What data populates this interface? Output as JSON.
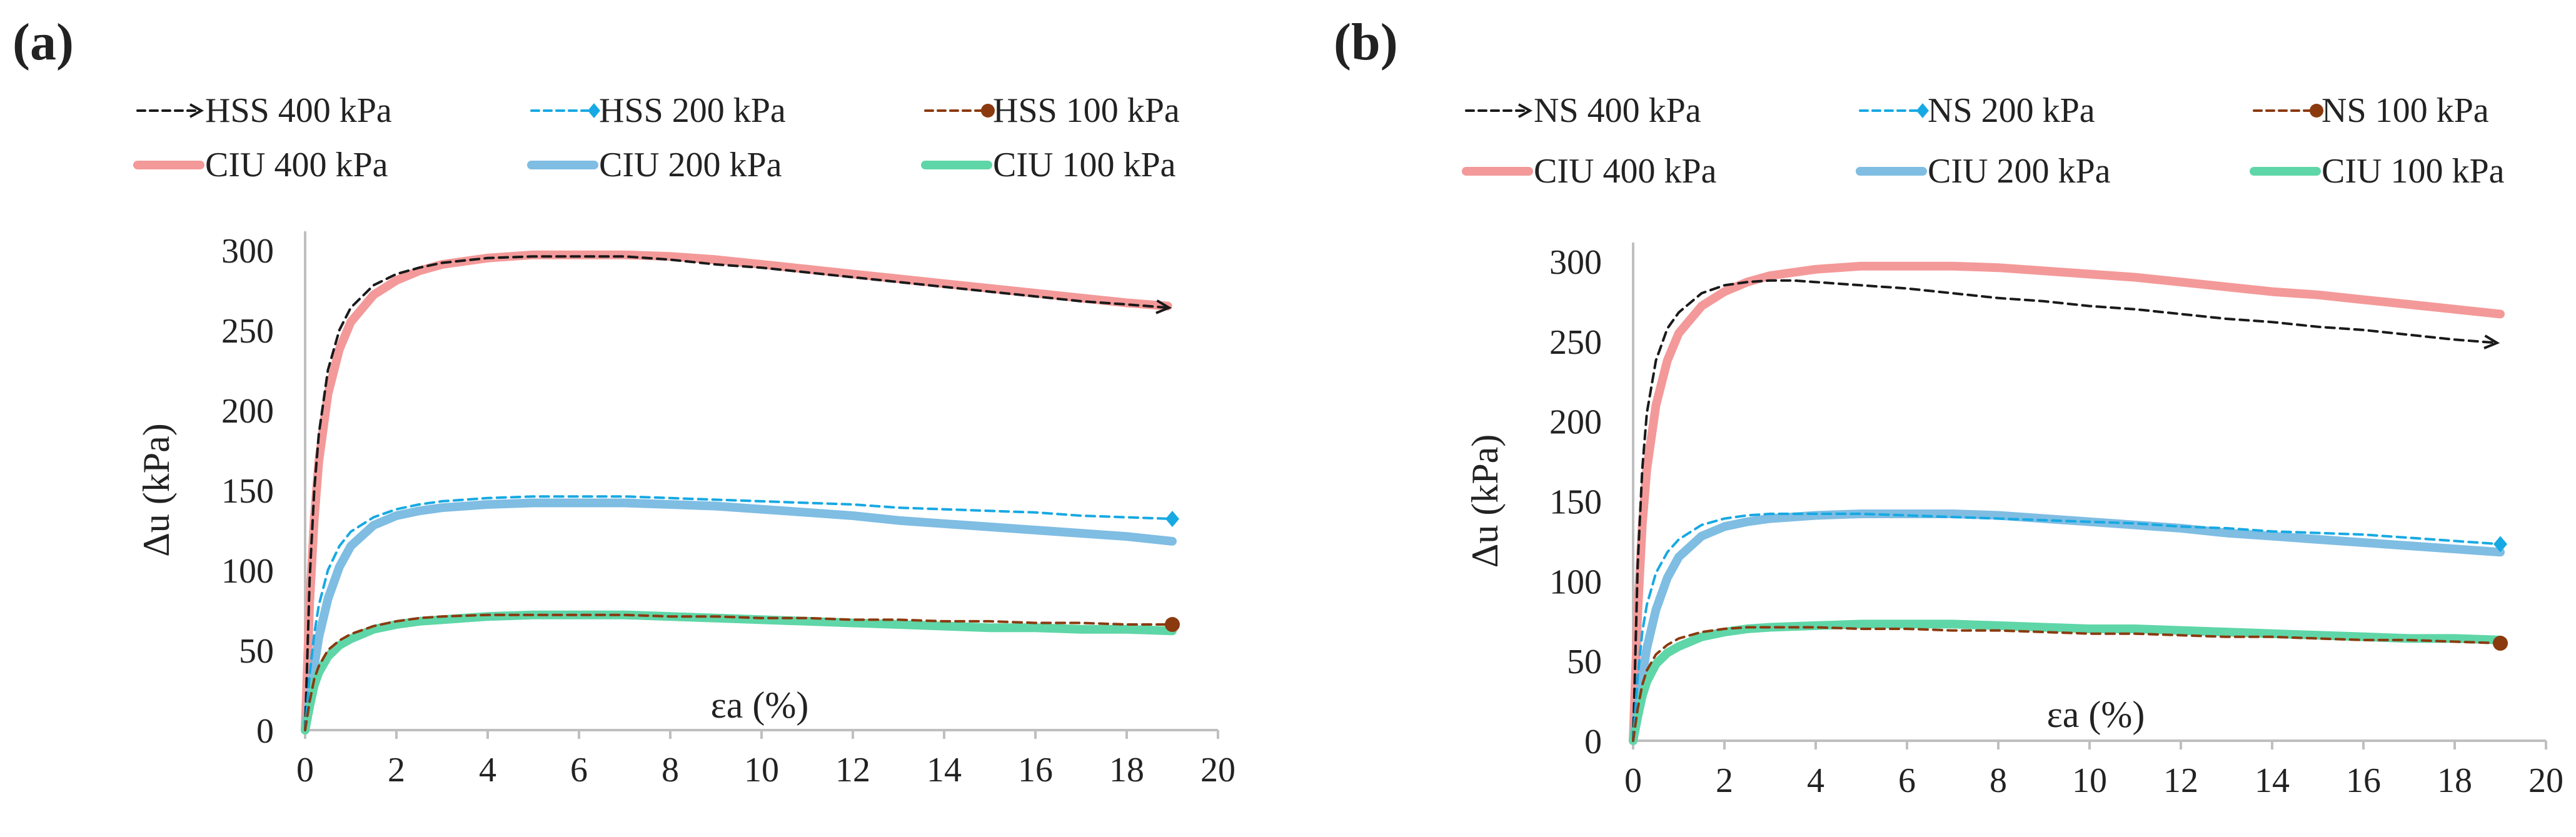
{
  "chart_data": [
    {
      "type": "line",
      "panel_label": "(a)",
      "title": "",
      "xlabel": "εa (%)",
      "ylabel": "Δu (kPa)",
      "xlim": [
        0,
        20
      ],
      "ylim": [
        0,
        300
      ],
      "xticks": [
        0,
        2,
        4,
        6,
        8,
        10,
        12,
        14,
        16,
        18,
        20
      ],
      "yticks": [
        0,
        50,
        100,
        150,
        200,
        250,
        300
      ],
      "grid": false,
      "legend_position": "top",
      "series": [
        {
          "name": "HSS 400 kPa",
          "color": "#1a1a1a",
          "style": "dashed",
          "marker": "arrow",
          "x": [
            0,
            0.1,
            0.2,
            0.3,
            0.5,
            0.75,
            1,
            1.5,
            2,
            2.5,
            3,
            4,
            5,
            6,
            7,
            8,
            9,
            10,
            11,
            12,
            13,
            14,
            15,
            16,
            17,
            18,
            18.9
          ],
          "y": [
            0,
            95,
            150,
            185,
            225,
            250,
            264,
            278,
            285,
            289,
            292,
            295,
            296,
            296,
            296,
            294,
            291,
            289,
            286,
            283,
            280,
            277,
            274,
            271,
            268,
            266,
            264
          ]
        },
        {
          "name": "HSS 200 kPa",
          "color": "#17a9e3",
          "style": "dashed",
          "marker": "diamond",
          "x": [
            0,
            0.1,
            0.2,
            0.3,
            0.5,
            0.75,
            1,
            1.5,
            2,
            2.5,
            3,
            4,
            5,
            6,
            7,
            8,
            9,
            10,
            11,
            12,
            13,
            14,
            15,
            16,
            17,
            18,
            19
          ],
          "y": [
            0,
            35,
            60,
            78,
            100,
            115,
            124,
            133,
            138,
            141,
            143,
            145,
            146,
            146,
            146,
            145,
            144,
            143,
            142,
            141,
            139,
            138,
            137,
            136,
            134,
            133,
            132
          ]
        },
        {
          "name": "HSS 100 kPa",
          "color": "#8b3a0f",
          "style": "dashed",
          "marker": "circle",
          "x": [
            0,
            0.1,
            0.2,
            0.3,
            0.5,
            0.75,
            1,
            1.5,
            2,
            2.5,
            3,
            4,
            5,
            6,
            7,
            8,
            9,
            10,
            11,
            12,
            13,
            14,
            15,
            16,
            17,
            18,
            19
          ],
          "y": [
            0,
            18,
            32,
            40,
            50,
            56,
            60,
            65,
            68,
            70,
            71,
            72,
            72,
            72,
            72,
            71,
            71,
            70,
            70,
            69,
            69,
            68,
            68,
            67,
            67,
            66,
            66
          ]
        },
        {
          "name": "CIU 400 kPa",
          "color": "#f49999",
          "style": "solid",
          "marker": "none",
          "x": [
            0,
            0.1,
            0.2,
            0.3,
            0.5,
            0.75,
            1,
            1.5,
            2,
            2.5,
            3,
            4,
            5,
            6,
            7,
            8,
            9,
            10,
            11,
            12,
            13,
            14,
            15,
            16,
            17,
            18,
            18.9
          ],
          "y": [
            0,
            80,
            132,
            168,
            210,
            238,
            255,
            272,
            281,
            287,
            291,
            295,
            297,
            297,
            297,
            296,
            294,
            291,
            288,
            285,
            282,
            279,
            276,
            273,
            270,
            267,
            265
          ]
        },
        {
          "name": "CIU 200 kPa",
          "color": "#7fbde3",
          "style": "solid",
          "marker": "none",
          "x": [
            0,
            0.1,
            0.2,
            0.3,
            0.5,
            0.75,
            1,
            1.5,
            2,
            2.5,
            3,
            4,
            5,
            6,
            7,
            8,
            9,
            10,
            11,
            12,
            13,
            14,
            15,
            16,
            17,
            18,
            19
          ],
          "y": [
            0,
            20,
            40,
            58,
            82,
            102,
            115,
            128,
            134,
            137,
            139,
            141,
            142,
            142,
            142,
            141,
            140,
            138,
            136,
            134,
            131,
            129,
            127,
            125,
            123,
            121,
            118
          ]
        },
        {
          "name": "CIU 100 kPa",
          "color": "#5fd6a8",
          "style": "solid",
          "marker": "none",
          "x": [
            0,
            0.1,
            0.2,
            0.3,
            0.5,
            0.75,
            1,
            1.5,
            2,
            2.5,
            3,
            4,
            5,
            6,
            7,
            8,
            9,
            10,
            11,
            12,
            13,
            14,
            15,
            16,
            17,
            18,
            19
          ],
          "y": [
            0,
            15,
            28,
            36,
            46,
            53,
            57,
            63,
            66,
            68,
            69,
            71,
            72,
            72,
            72,
            71,
            70,
            69,
            68,
            67,
            66,
            65,
            64,
            64,
            63,
            63,
            62
          ]
        }
      ]
    },
    {
      "type": "line",
      "panel_label": "(b)",
      "title": "",
      "xlabel": "εa (%)",
      "ylabel": "Δu (kPa)",
      "xlim": [
        0,
        20
      ],
      "ylim": [
        0,
        300
      ],
      "xticks": [
        0,
        2,
        4,
        6,
        8,
        10,
        12,
        14,
        16,
        18,
        20
      ],
      "yticks": [
        0,
        50,
        100,
        150,
        200,
        250,
        300
      ],
      "grid": false,
      "legend_position": "top",
      "series": [
        {
          "name": "NS 400 kPa",
          "color": "#1a1a1a",
          "style": "dashed",
          "marker": "arrow",
          "x": [
            0,
            0.1,
            0.2,
            0.3,
            0.5,
            0.75,
            1,
            1.5,
            2,
            2.5,
            3,
            3.5,
            4,
            5,
            6,
            7,
            8,
            9,
            10,
            11,
            12,
            13,
            14,
            15,
            16,
            17,
            18,
            18.9
          ],
          "y": [
            0,
            110,
            170,
            205,
            238,
            258,
            268,
            280,
            285,
            287,
            288,
            288,
            287,
            285,
            283,
            280,
            277,
            275,
            272,
            270,
            267,
            264,
            262,
            259,
            257,
            254,
            251,
            249
          ]
        },
        {
          "name": "NS 200 kPa",
          "color": "#17a9e3",
          "style": "dashed",
          "marker": "diamond",
          "x": [
            0,
            0.1,
            0.2,
            0.3,
            0.5,
            0.75,
            1,
            1.5,
            2,
            2.5,
            3,
            4,
            5,
            6,
            7,
            8,
            9,
            10,
            11,
            12,
            13,
            14,
            15,
            16,
            17,
            18,
            19
          ],
          "y": [
            0,
            40,
            68,
            85,
            105,
            118,
            126,
            135,
            139,
            141,
            142,
            142,
            142,
            141,
            140,
            139,
            138,
            137,
            136,
            134,
            133,
            131,
            130,
            129,
            127,
            125,
            123
          ]
        },
        {
          "name": "NS 100 kPa",
          "color": "#8b3a0f",
          "style": "dashed",
          "marker": "circle",
          "x": [
            0,
            0.1,
            0.2,
            0.3,
            0.5,
            0.75,
            1,
            1.5,
            2,
            2.5,
            3,
            4,
            5,
            6,
            7,
            8,
            9,
            10,
            11,
            12,
            13,
            14,
            15,
            16,
            17,
            18,
            19
          ],
          "y": [
            0,
            20,
            35,
            44,
            54,
            60,
            64,
            68,
            70,
            71,
            71,
            71,
            70,
            70,
            69,
            69,
            68,
            67,
            67,
            66,
            65,
            65,
            64,
            63,
            63,
            62,
            61
          ]
        },
        {
          "name": "CIU 400 kPa",
          "color": "#f49999",
          "style": "solid",
          "marker": "none",
          "x": [
            0,
            0.1,
            0.2,
            0.3,
            0.5,
            0.75,
            1,
            1.5,
            2,
            2.5,
            3,
            4,
            5,
            6,
            7,
            8,
            9,
            10,
            11,
            12,
            13,
            14,
            15,
            16,
            17,
            18,
            19
          ],
          "y": [
            0,
            80,
            135,
            170,
            210,
            238,
            255,
            272,
            281,
            287,
            291,
            295,
            297,
            297,
            297,
            296,
            294,
            292,
            290,
            287,
            284,
            281,
            279,
            276,
            273,
            270,
            267
          ]
        },
        {
          "name": "CIU 200 kPa",
          "color": "#7fbde3",
          "style": "solid",
          "marker": "none",
          "x": [
            0,
            0.1,
            0.2,
            0.3,
            0.5,
            0.75,
            1,
            1.5,
            2,
            2.5,
            3,
            4,
            5,
            6,
            7,
            8,
            9,
            10,
            11,
            12,
            13,
            14,
            15,
            16,
            17,
            18,
            19
          ],
          "y": [
            0,
            20,
            40,
            58,
            82,
            102,
            115,
            128,
            134,
            137,
            139,
            141,
            142,
            142,
            142,
            141,
            139,
            137,
            135,
            133,
            130,
            128,
            126,
            124,
            122,
            120,
            118
          ]
        },
        {
          "name": "CIU 100 kPa",
          "color": "#5fd6a8",
          "style": "solid",
          "marker": "none",
          "x": [
            0,
            0.1,
            0.2,
            0.3,
            0.5,
            0.75,
            1,
            1.5,
            2,
            2.5,
            3,
            4,
            5,
            6,
            7,
            8,
            9,
            10,
            11,
            12,
            13,
            14,
            15,
            16,
            17,
            18,
            19
          ],
          "y": [
            0,
            15,
            28,
            37,
            48,
            55,
            59,
            65,
            68,
            70,
            71,
            72,
            73,
            73,
            73,
            72,
            71,
            70,
            70,
            69,
            68,
            67,
            66,
            65,
            64,
            64,
            63
          ]
        }
      ]
    }
  ]
}
